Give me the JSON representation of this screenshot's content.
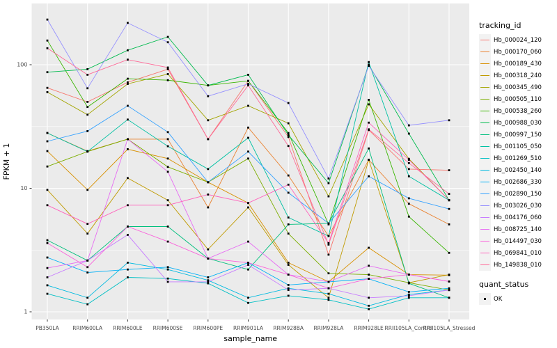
{
  "colors": {
    "panel_background": "#EBEBEB",
    "gridline": "#FFFFFF",
    "axis_text": "#4D4D4D",
    "axis_title": "#000000",
    "marker": "#000000",
    "tick_mark": "#333333"
  },
  "chart_data": {
    "type": "line",
    "title": "",
    "xlabel": "sample_name",
    "ylabel": "FPKM + 1",
    "y_scale": "log10",
    "y_ticks": [
      1,
      10,
      100
    ],
    "ylim": [
      1,
      300
    ],
    "grid": "on",
    "marker_shape": "black-square",
    "legend_position": "right",
    "categories": [
      "PB350LA",
      "RRIM600LA",
      "RRIM600LE",
      "RRIM600SE",
      "RRIM600PE",
      "RRIM901LA",
      "RRIM928BA",
      "RRIM928LA",
      "RRIM928LE",
      "RRII105LA_Control",
      "RRII105LA_Stressed"
    ],
    "legend": {
      "title": "tracking_id"
    },
    "legend2": {
      "title": "quant_status",
      "items": [
        {
          "label": "OK",
          "marker": "black-square"
        }
      ]
    },
    "series": [
      {
        "name": "Hb_000024_120",
        "color": "#F8766D",
        "values": [
          65,
          50,
          72,
          92,
          25,
          74,
          26,
          2.9,
          29.6,
          14.3,
          14
        ]
      },
      {
        "name": "Hb_000170_060",
        "color": "#EA8331",
        "values": [
          28,
          20,
          25,
          25,
          7.0,
          31,
          12.7,
          4.1,
          17,
          7.5,
          5.1
        ]
      },
      {
        "name": "Hb_000189_430",
        "color": "#D89000",
        "values": [
          20,
          9.7,
          20.7,
          17.4,
          11.2,
          7.6,
          2.5,
          1.75,
          3.3,
          2.0,
          1.98
        ]
      },
      {
        "name": "Hb_000318_240",
        "color": "#C09B00",
        "values": [
          9.7,
          4.3,
          12.1,
          8.0,
          3.2,
          7.0,
          2.4,
          1.3,
          17,
          1.72,
          2.0
        ]
      },
      {
        "name": "Hb_000345_490",
        "color": "#A3A500",
        "values": [
          60,
          39.4,
          70,
          84,
          35.5,
          46.5,
          33.6,
          8.6,
          47.8,
          17.3,
          8.0
        ]
      },
      {
        "name": "Hb_000505_110",
        "color": "#7CAE00",
        "values": [
          15,
          19.8,
          25,
          14.9,
          11.2,
          17.4,
          4.3,
          2.05,
          2.0,
          1.72,
          1.5
        ]
      },
      {
        "name": "Hb_000538_260",
        "color": "#39B600",
        "values": [
          157,
          45.5,
          77,
          75,
          68,
          74,
          28,
          5.1,
          52,
          5.9,
          3.0
        ]
      },
      {
        "name": "Hb_000988_030",
        "color": "#00BB4E",
        "values": [
          87,
          92,
          131,
          168,
          68,
          83,
          27,
          11,
          100,
          27.7,
          8.0
        ]
      },
      {
        "name": "Hb_000997_150",
        "color": "#00BF7D",
        "values": [
          3.8,
          2.6,
          4.9,
          4.9,
          2.7,
          2.2,
          5.1,
          5.2,
          21,
          1.7,
          1.3
        ]
      },
      {
        "name": "Hb_001105_050",
        "color": "#00C1A3",
        "values": [
          28,
          19.8,
          36,
          21.9,
          14.3,
          25.6,
          5.8,
          4.1,
          105,
          12.5,
          8.0
        ]
      },
      {
        "name": "Hb_001269_510",
        "color": "#00BFC4",
        "values": [
          1.4,
          1.15,
          1.9,
          1.86,
          1.7,
          1.18,
          1.35,
          1.25,
          1.05,
          1.3,
          1.3
        ]
      },
      {
        "name": "Hb_002450_140",
        "color": "#00BAE0",
        "values": [
          1.64,
          1.3,
          2.5,
          2.2,
          1.8,
          1.3,
          1.55,
          1.4,
          1.12,
          1.38,
          1.5
        ]
      },
      {
        "name": "Hb_002686_330",
        "color": "#00B0F6",
        "values": [
          2.75,
          2.08,
          2.2,
          2.3,
          1.9,
          2.5,
          1.65,
          1.75,
          1.85,
          1.45,
          1.55
        ]
      },
      {
        "name": "Hb_002890_150",
        "color": "#35A2FF",
        "values": [
          24,
          29,
          46.5,
          28.5,
          11.2,
          19.8,
          9.2,
          5.2,
          12.5,
          8.3,
          6.8
        ]
      },
      {
        "name": "Hb_003026_030",
        "color": "#9590FF",
        "values": [
          232,
          64.5,
          218,
          152,
          55.6,
          70,
          49,
          12,
          98,
          32.3,
          35.5
        ]
      },
      {
        "name": "Hb_004176_060",
        "color": "#C77CFF",
        "values": [
          1.9,
          2.6,
          4.2,
          1.75,
          1.75,
          2.4,
          1.5,
          1.55,
          1.3,
          1.35,
          1.5
        ]
      },
      {
        "name": "Hb_008725_140",
        "color": "#E76BF3",
        "values": [
          2.26,
          2.6,
          25,
          13.6,
          2.7,
          3.7,
          2.0,
          1.75,
          2.36,
          2.0,
          1.76
        ]
      },
      {
        "name": "Hb_014497_030",
        "color": "#FA62DB",
        "values": [
          3.6,
          2.3,
          4.9,
          3.7,
          2.7,
          2.5,
          2.0,
          1.55,
          1.85,
          2.0,
          1.76
        ]
      },
      {
        "name": "Hb_069841_010",
        "color": "#FF62BC",
        "values": [
          7.3,
          5.15,
          7.3,
          7.3,
          8.9,
          7.6,
          10.7,
          3.6,
          34,
          17,
          8.0
        ]
      },
      {
        "name": "Hb_149838_010",
        "color": "#FF6A98",
        "values": [
          136,
          83,
          110,
          95,
          25,
          68,
          22,
          3.5,
          30,
          16,
          9.0
        ]
      }
    ]
  }
}
